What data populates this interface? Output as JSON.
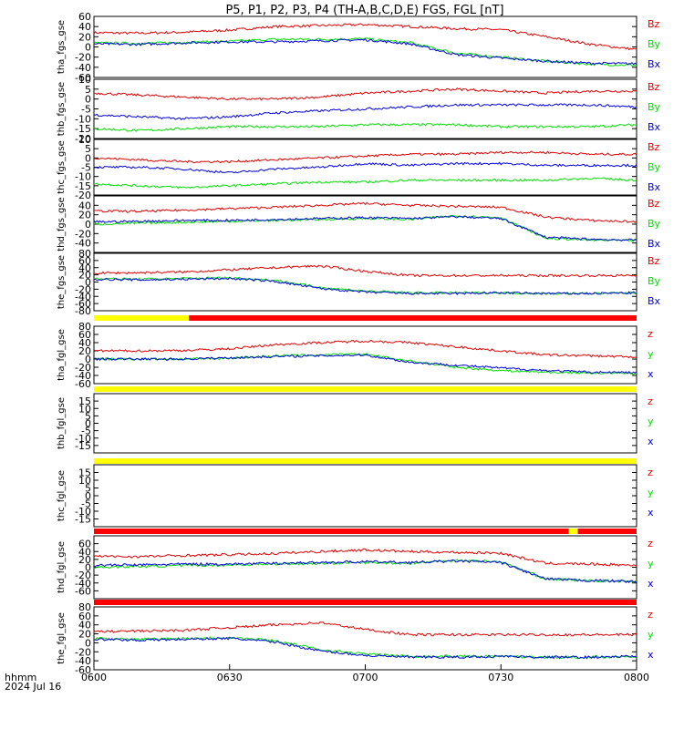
{
  "title": "P5, P1, P2, P3, P4 (TH-A,B,C,D,E) FGS, FGL [nT]",
  "footer": {
    "line1": "hhmm",
    "line2": "2024 Jul 16"
  },
  "colors": {
    "z": "#e00000",
    "y": "#00e000",
    "x": "#0000e0",
    "bar_red": "#ff0000",
    "bar_yellow": "#ffff00",
    "axis": "#000000"
  },
  "chart_data": {
    "type": "line",
    "x_ticks": [
      "0600",
      "0630",
      "0700",
      "0730",
      "0800"
    ],
    "xlim": [
      "06:00",
      "08:00"
    ],
    "panels": [
      {
        "ylabel": "tha_fgs_gse",
        "ylim": [
          -60,
          60
        ],
        "yticks": [
          "60",
          "40",
          "20",
          "0",
          "-20",
          "-40",
          "-60"
        ],
        "legend": [
          "Bz",
          "By",
          "Bx"
        ],
        "series": [
          {
            "name": "Bz",
            "values": [
              28,
              27,
              29,
              33,
              40,
              42,
              44,
              40,
              36,
              34,
              20,
              5,
              -5
            ]
          },
          {
            "name": "By",
            "values": [
              8,
              7,
              9,
              11,
              15,
              15,
              16,
              8,
              -12,
              -20,
              -28,
              -34,
              -36
            ]
          },
          {
            "name": "Bx",
            "values": [
              6,
              5,
              8,
              10,
              10,
              12,
              14,
              6,
              -15,
              -22,
              -28,
              -32,
              -33
            ]
          }
        ]
      },
      {
        "ylabel": "thb_fgs_gse",
        "ylim": [
          -20,
          10
        ],
        "yticks": [
          "10",
          "5",
          "0",
          "-5",
          "-10",
          "-15",
          "-20"
        ],
        "legend": [
          "Bz",
          "By",
          "Bx"
        ],
        "series": [
          {
            "name": "Bz",
            "values": [
              3,
              2,
              1,
              0,
              0,
              1,
              3,
              4,
              5,
              4,
              3,
              4,
              4
            ]
          },
          {
            "name": "By",
            "values": [
              -15,
              -16,
              -15,
              -14,
              -14,
              -14,
              -13,
              -13,
              -13,
              -14,
              -14,
              -14,
              -13
            ]
          },
          {
            "name": "Bx",
            "values": [
              -8,
              -9,
              -10,
              -9,
              -7,
              -6,
              -5,
              -4,
              -3,
              -3,
              -3,
              -3,
              -4
            ]
          }
        ]
      },
      {
        "ylabel": "thc_fgs_gse",
        "ylim": [
          -20,
          10
        ],
        "yticks": [
          "10",
          "5",
          "0",
          "-5",
          "-10",
          "-15",
          "-20"
        ],
        "legend": [
          "Bz",
          "By",
          "Bx"
        ],
        "series": [
          {
            "name": "Bz",
            "values": [
              0,
              -1,
              -2,
              -2,
              -1,
              0,
              1,
              2,
              2,
              3,
              3,
              2,
              2
            ]
          },
          {
            "name": "By",
            "values": [
              -14,
              -15,
              -16,
              -15,
              -14,
              -13,
              -13,
              -12,
              -12,
              -12,
              -12,
              -11,
              -12
            ]
          },
          {
            "name": "Bx",
            "values": [
              -5,
              -5,
              -6,
              -8,
              -6,
              -5,
              -3,
              -4,
              -3,
              -3,
              -4,
              -4,
              -4
            ]
          }
        ]
      },
      {
        "ylabel": "thd_fgs_gse",
        "ylim": [
          -60,
          60
        ],
        "yticks": [
          "40",
          "20",
          "0",
          "-20",
          "-40"
        ],
        "legend": [
          "Bz",
          "By",
          "Bx"
        ],
        "series": [
          {
            "name": "Bz",
            "values": [
              28,
              27,
              30,
              33,
              36,
              40,
              44,
              40,
              38,
              36,
              15,
              8,
              5
            ]
          },
          {
            "name": "By",
            "values": [
              0,
              2,
              4,
              6,
              8,
              10,
              12,
              10,
              18,
              14,
              -30,
              -34,
              -35
            ]
          },
          {
            "name": "Bx",
            "values": [
              5,
              6,
              8,
              8,
              10,
              12,
              14,
              12,
              16,
              12,
              -28,
              -32,
              -34
            ]
          }
        ]
      },
      {
        "ylabel": "the_fgs_gse",
        "ylim": [
          -80,
          80
        ],
        "yticks": [
          "80",
          "60",
          "40",
          "20",
          "0",
          "-20",
          "-40",
          "-60",
          "-80"
        ],
        "legend": [
          "Bz",
          "By",
          "Bx"
        ],
        "series": [
          {
            "name": "Bz",
            "values": [
              25,
              26,
              28,
              34,
              40,
              45,
              30,
              18,
              18,
              18,
              18,
              18,
              18
            ]
          },
          {
            "name": "By",
            "values": [
              10,
              8,
              10,
              12,
              5,
              -15,
              -25,
              -30,
              -30,
              -30,
              -32,
              -32,
              -30
            ]
          },
          {
            "name": "Bx",
            "values": [
              8,
              6,
              8,
              10,
              2,
              -18,
              -28,
              -32,
              -32,
              -30,
              -32,
              -32,
              -30
            ]
          }
        ]
      },
      {
        "ylabel": "tha_fgl_gse",
        "ylim": [
          -60,
          80
        ],
        "yticks": [
          "80",
          "60",
          "40",
          "20",
          "0",
          "-20",
          "-40",
          "-60"
        ],
        "legend": [
          "z",
          "y",
          "x"
        ],
        "series": [
          {
            "name": "z",
            "values": [
              20,
              20,
              21,
              25,
              35,
              40,
              44,
              40,
              30,
              20,
              10,
              8,
              5
            ]
          },
          {
            "name": "y",
            "values": [
              0,
              0,
              0,
              2,
              8,
              10,
              12,
              -5,
              -20,
              -28,
              -32,
              -34,
              -35
            ]
          },
          {
            "name": "x",
            "values": [
              0,
              0,
              0,
              3,
              6,
              8,
              10,
              -8,
              -15,
              -22,
              -28,
              -32,
              -33
            ]
          }
        ]
      },
      {
        "ylabel": "thb_fgl_gse",
        "ylim": [
          -20,
          20
        ],
        "yticks": [
          "15",
          "10",
          "5",
          "0",
          "-5",
          "-10",
          "-15"
        ],
        "legend": [
          "z",
          "y",
          "x"
        ],
        "series": []
      },
      {
        "ylabel": "thc_fgl_gse",
        "ylim": [
          -20,
          20
        ],
        "yticks": [
          "15",
          "10",
          "5",
          "0",
          "-5",
          "-10",
          "-15"
        ],
        "legend": [
          "z",
          "y",
          "x"
        ],
        "series": []
      },
      {
        "ylabel": "thd_fgl_gse",
        "ylim": [
          -80,
          80
        ],
        "yticks": [
          "60",
          "40",
          "20",
          "0",
          "-20",
          "-40",
          "-60"
        ],
        "legend": [
          "z",
          "y",
          "x"
        ],
        "series": [
          {
            "name": "z",
            "values": [
              28,
              27,
              30,
              32,
              35,
              40,
              44,
              40,
              38,
              36,
              10,
              8,
              5
            ]
          },
          {
            "name": "y",
            "values": [
              0,
              2,
              4,
              6,
              8,
              10,
              12,
              10,
              18,
              14,
              -30,
              -34,
              -36
            ]
          },
          {
            "name": "x",
            "values": [
              5,
              6,
              8,
              8,
              10,
              12,
              14,
              12,
              16,
              12,
              -30,
              -34,
              -36
            ]
          }
        ]
      },
      {
        "ylabel": "the_fgl_gse",
        "ylim": [
          -60,
          80
        ],
        "yticks": [
          "80",
          "60",
          "40",
          "20",
          "0",
          "-20",
          "-40",
          "-60"
        ],
        "legend": [
          "z",
          "y",
          "x"
        ],
        "series": [
          {
            "name": "z",
            "values": [
              25,
              26,
              28,
              34,
              40,
              45,
              30,
              18,
              18,
              18,
              18,
              18,
              18
            ]
          },
          {
            "name": "y",
            "values": [
              10,
              8,
              10,
              12,
              5,
              -15,
              -25,
              -30,
              -30,
              -30,
              -32,
              -32,
              -30
            ]
          },
          {
            "name": "x",
            "values": [
              8,
              6,
              8,
              10,
              2,
              -18,
              -28,
              -32,
              -32,
              -30,
              -32,
              -32,
              -30
            ]
          }
        ]
      }
    ],
    "bars": [
      {
        "before_panel": 5,
        "segments": [
          {
            "color": "yellow",
            "from": "06:00",
            "to": "06:21"
          },
          {
            "color": "red",
            "from": "06:21",
            "to": "08:00"
          }
        ]
      },
      {
        "before_panel": 6,
        "segments": [
          {
            "color": "yellow",
            "from": "06:00",
            "to": "08:00"
          }
        ]
      },
      {
        "before_panel": 7,
        "segments": [
          {
            "color": "yellow",
            "from": "06:00",
            "to": "08:00"
          }
        ]
      },
      {
        "before_panel": 8,
        "segments": [
          {
            "color": "red",
            "from": "06:00",
            "to": "07:45"
          },
          {
            "color": "yellow",
            "from": "07:45",
            "to": "07:47"
          },
          {
            "color": "red",
            "from": "07:47",
            "to": "08:00"
          }
        ]
      },
      {
        "before_panel": 9,
        "segments": [
          {
            "color": "red",
            "from": "06:00",
            "to": "08:00"
          }
        ]
      }
    ]
  }
}
